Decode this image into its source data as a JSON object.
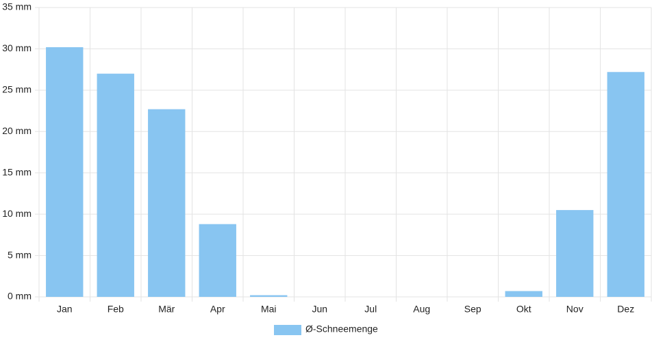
{
  "chart_data": {
    "type": "bar",
    "categories": [
      "Jan",
      "Feb",
      "Mär",
      "Apr",
      "Mai",
      "Jun",
      "Jul",
      "Aug",
      "Sep",
      "Okt",
      "Nov",
      "Dez"
    ],
    "series": [
      {
        "name": "Ø-Schneemenge",
        "color": "#88c5f1",
        "values": [
          30.2,
          27.0,
          22.7,
          8.8,
          0.2,
          0,
          0,
          0,
          0,
          0.7,
          10.5,
          27.2
        ]
      }
    ],
    "ylim": [
      0,
      35
    ],
    "yticks": [
      {
        "value": 0,
        "label": "0 mm"
      },
      {
        "value": 5,
        "label": "5 mm"
      },
      {
        "value": 10,
        "label": "10 mm"
      },
      {
        "value": 15,
        "label": "15 mm"
      },
      {
        "value": 20,
        "label": "20 mm"
      },
      {
        "value": 25,
        "label": "25 mm"
      },
      {
        "value": 30,
        "label": "30 mm"
      },
      {
        "value": 35,
        "label": "35 mm"
      }
    ],
    "grid": true,
    "legend": "bottom"
  }
}
